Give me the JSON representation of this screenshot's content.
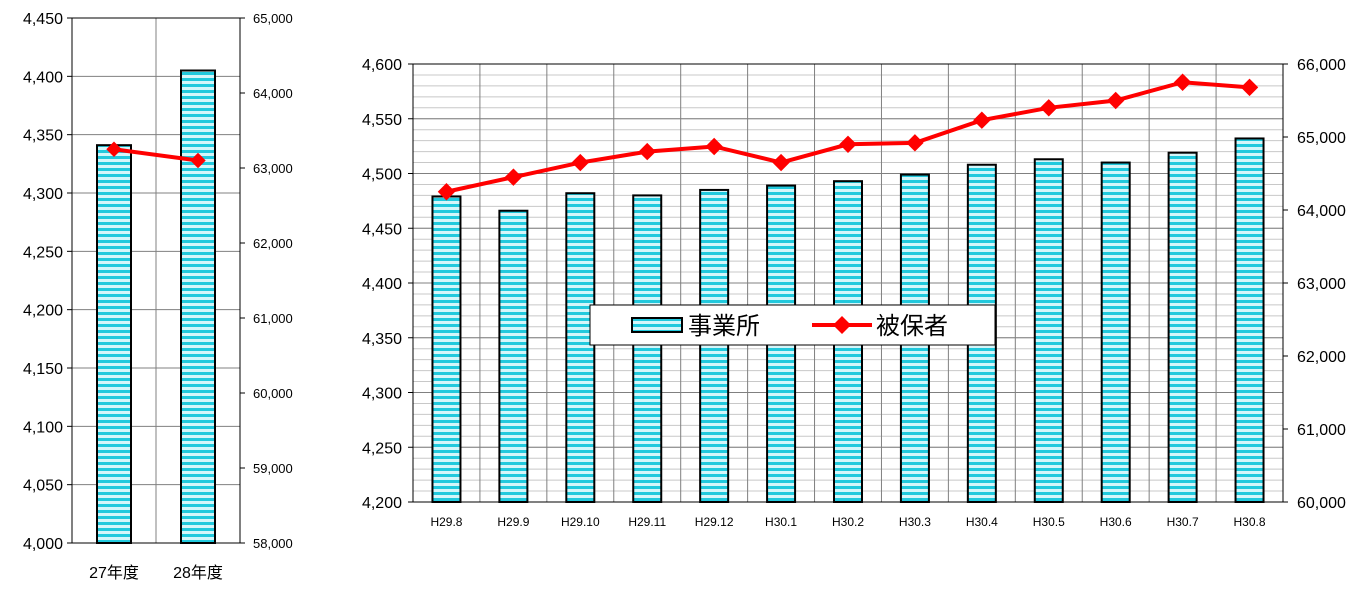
{
  "colors": {
    "bar_stripe_a": "#22c9dd",
    "bar_stripe_b": "#d4f6fa",
    "line": "#ff0000",
    "grid": "#808080",
    "bar_border": "#000000"
  },
  "chart_data": [
    {
      "type": "bar+line",
      "categories": [
        "27年度",
        "28年度"
      ],
      "series": [
        {
          "name": "事業所",
          "kind": "bar",
          "axis": "left",
          "values": [
            4341,
            4405
          ]
        },
        {
          "name": "被保者",
          "kind": "line",
          "axis": "right",
          "values": [
            63250,
            63100
          ]
        }
      ],
      "left_axis": {
        "ylim": [
          4000,
          4450
        ],
        "ticks": [
          "4,000",
          "4,050",
          "4,100",
          "4,150",
          "4,200",
          "4,250",
          "4,300",
          "4,350",
          "4,400",
          "4,450"
        ]
      },
      "right_axis": {
        "ylim": [
          58000,
          65000
        ],
        "ticks": [
          "58,000",
          "59,000",
          "60,000",
          "61,000",
          "62,000",
          "63,000",
          "64,000",
          "65,000"
        ]
      },
      "grid": true,
      "legend": "none"
    },
    {
      "type": "bar+line",
      "categories": [
        "H29.8",
        "H29.9",
        "H29.10",
        "H29.11",
        "H29.12",
        "H30.1",
        "H30.2",
        "H30.3",
        "H30.4",
        "H30.5",
        "H30.6",
        "H30.7",
        "H30.8"
      ],
      "series": [
        {
          "name": "事業所",
          "kind": "bar",
          "axis": "left",
          "values": [
            4479,
            4466,
            4482,
            4480,
            4485,
            4489,
            4493,
            4499,
            4508,
            4513,
            4510,
            4519,
            4532
          ]
        },
        {
          "name": "被保者",
          "kind": "line",
          "axis": "right",
          "values": [
            64250,
            64450,
            64650,
            64800,
            64870,
            64650,
            64900,
            64920,
            65230,
            65400,
            65500,
            65750,
            65680
          ]
        }
      ],
      "left_axis": {
        "ylim": [
          4200,
          4600
        ],
        "ticks": [
          "4,200",
          "4,250",
          "4,300",
          "4,350",
          "4,400",
          "4,450",
          "4,500",
          "4,550",
          "4,600"
        ]
      },
      "right_axis": {
        "ylim": [
          60000,
          66000
        ],
        "ticks": [
          "60,000",
          "61,000",
          "62,000",
          "63,000",
          "64,000",
          "65,000",
          "66,000"
        ]
      },
      "grid": true,
      "legend": "center",
      "legend_entries": [
        "事業所",
        "被保者"
      ]
    }
  ]
}
